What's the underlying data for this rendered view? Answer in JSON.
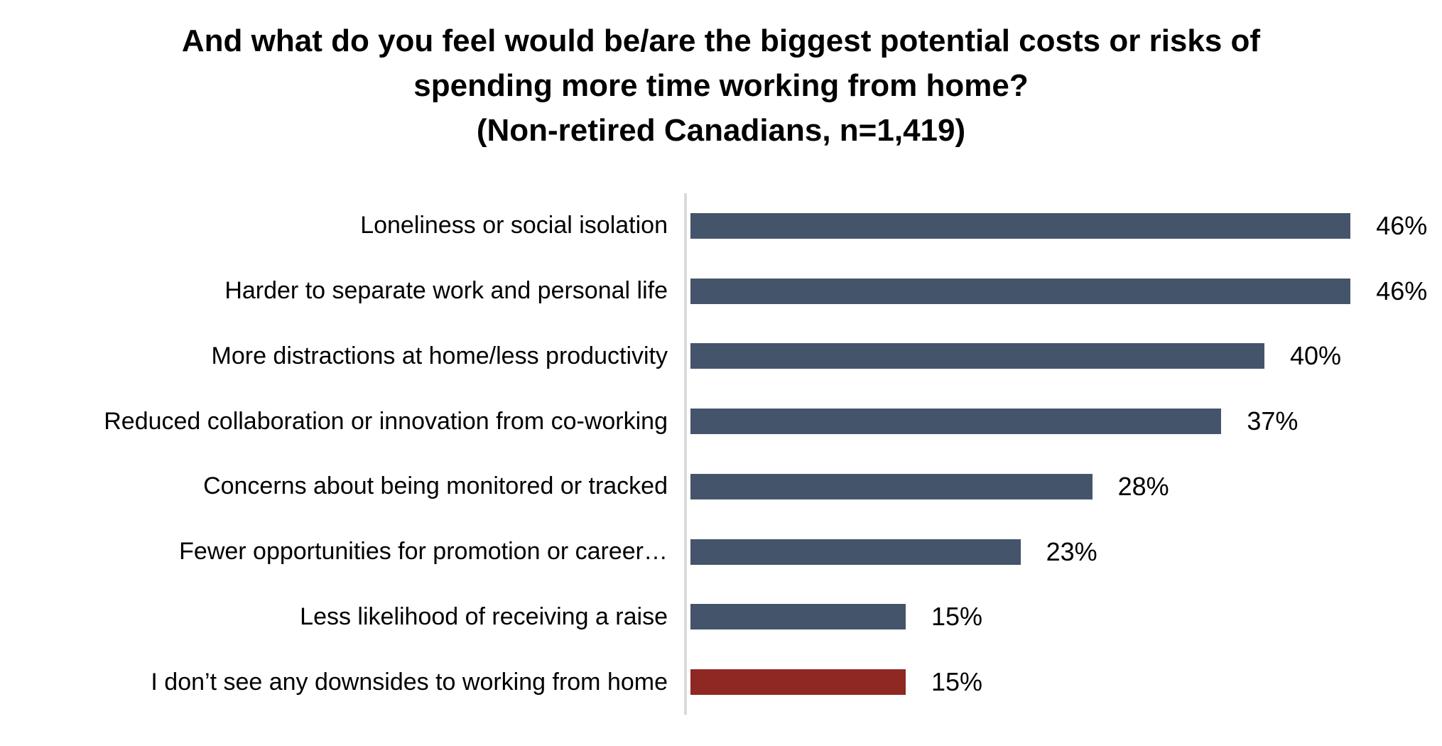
{
  "colors": {
    "bar": "#44546A",
    "highlight_bar": "#8F2723",
    "axis_line": "#D9D9D9",
    "text": "#000000",
    "background": "#FFFFFF"
  },
  "title": {
    "lines": [
      "And what do you feel would be/are the biggest potential costs or risks of",
      "spending more time working from home?",
      "(Non-retired Canadians, n=1,419)"
    ]
  },
  "chart_data": {
    "type": "bar",
    "orientation": "horizontal",
    "title": "And what do you feel would be/are the biggest potential costs or risks of spending more time working from home? (Non-retired Canadians, n=1,419)",
    "categories": [
      "Loneliness or social isolation",
      "Harder to separate work and personal life",
      "More distractions at home/less productivity",
      "Reduced collaboration or innovation from co-working",
      "Concerns about being monitored or tracked",
      "Fewer opportunities for promotion or career…",
      "Less likelihood of receiving a raise",
      "I don’t see any downsides to working from home"
    ],
    "values": [
      46,
      46,
      40,
      37,
      28,
      23,
      15,
      15
    ],
    "value_labels": [
      "46%",
      "46%",
      "40%",
      "37%",
      "28%",
      "23%",
      "15%",
      "15%"
    ],
    "xlim": [
      0,
      50
    ],
    "highlight_index": 7,
    "grid": false,
    "legend": false,
    "xlabel": "",
    "ylabel": ""
  }
}
